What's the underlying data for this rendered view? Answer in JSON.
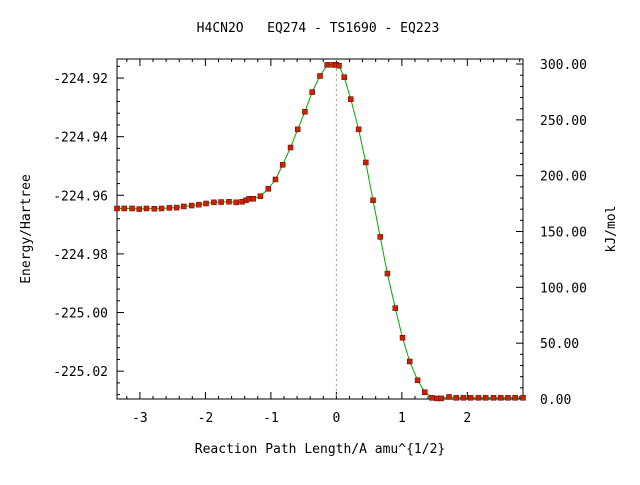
{
  "chart_data": {
    "type": "line",
    "title": "H4CN2O   EQ274 - TS1690 - EQ223",
    "xlabel": "Reaction Path Length/A amu^{1/2}",
    "ylabel": "Energy/Hartree",
    "y2label": "kJ/mol",
    "xlim": [
      -3.35,
      2.85
    ],
    "ylim": [
      -225.0295,
      -224.9135
    ],
    "y2lim": [
      0.0,
      304.5
    ],
    "x_ticks": [
      -3,
      -2,
      -1,
      0,
      1,
      2
    ],
    "x_tick_labels": [
      "-3",
      "-2",
      "-1",
      "0",
      "1",
      "2"
    ],
    "y_ticks": [
      -224.92,
      -224.94,
      -224.96,
      -224.98,
      -225.0,
      -225.02
    ],
    "y_tick_labels": [
      "-224.92",
      "-224.94",
      "-224.96",
      "-224.98",
      "-225.00",
      "-225.02"
    ],
    "y2_ticks": [
      300,
      250,
      200,
      150,
      100,
      50,
      0
    ],
    "y2_tick_labels": [
      "300.00",
      "250.00",
      "200.00",
      "150.00",
      "100.00",
      "50.00",
      "0.00"
    ],
    "ts_x": 0.0,
    "line_color": "#00aa00",
    "marker_color": "#cc2200",
    "ts_line_color": "#999999",
    "grid": false,
    "x": [
      -3.35,
      -3.24,
      -3.12,
      -3.01,
      -2.9,
      -2.78,
      -2.67,
      -2.55,
      -2.44,
      -2.33,
      -2.21,
      -2.1,
      -1.99,
      -1.87,
      -1.76,
      -1.64,
      -1.53,
      -1.44,
      -1.38,
      -1.33,
      -1.27,
      -1.16,
      -1.04,
      -0.93,
      -0.82,
      -0.7,
      -0.59,
      -0.48,
      -0.37,
      -0.25,
      -0.14,
      -0.05,
      0.0,
      0.04,
      0.12,
      0.22,
      0.34,
      0.45,
      0.56,
      0.67,
      0.78,
      0.9,
      1.01,
      1.12,
      1.24,
      1.35,
      1.46,
      1.54,
      1.6,
      1.72,
      1.83,
      1.94,
      2.05,
      2.17,
      2.28,
      2.4,
      2.51,
      2.62,
      2.73,
      2.85
    ],
    "y": [
      -224.9645,
      -224.9645,
      -224.9645,
      -224.9647,
      -224.9645,
      -224.9646,
      -224.9645,
      -224.9643,
      -224.9642,
      -224.9638,
      -224.9635,
      -224.9632,
      -224.9628,
      -224.9624,
      -224.9623,
      -224.9622,
      -224.9624,
      -224.9622,
      -224.9617,
      -224.9612,
      -224.9612,
      -224.9603,
      -224.9578,
      -224.9546,
      -224.9496,
      -224.9437,
      -224.9375,
      -224.9315,
      -224.9248,
      -224.9193,
      -224.9155,
      -224.9155,
      -224.9155,
      -224.9158,
      -224.9197,
      -224.9272,
      -224.9375,
      -224.9488,
      -224.9617,
      -224.9742,
      -224.9867,
      -224.9985,
      -225.0086,
      -225.0167,
      -225.0231,
      -225.0272,
      -225.0291,
      -225.0293,
      -225.0293,
      -225.0288,
      -225.0291,
      -225.0291,
      -225.0291,
      -225.0291,
      -225.0291,
      -225.0291,
      -225.0291,
      -225.0291,
      -225.0291,
      -225.0291
    ]
  }
}
